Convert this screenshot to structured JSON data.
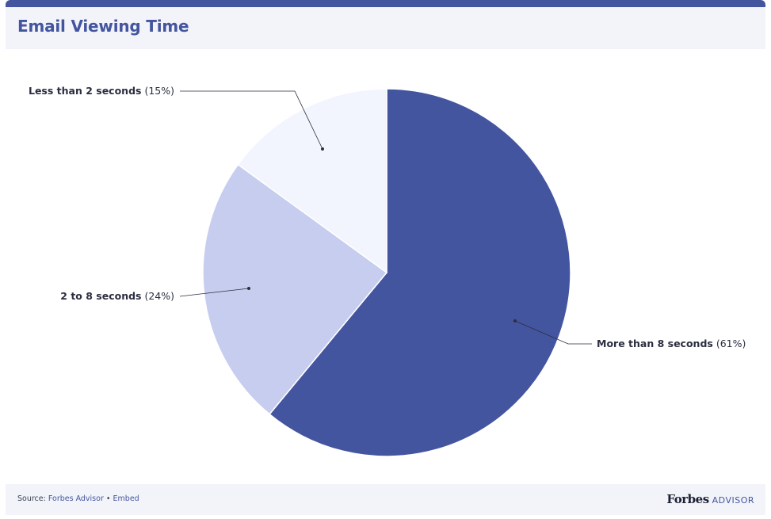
{
  "header": {
    "title": "Email Viewing Time"
  },
  "chart_data": {
    "type": "pie",
    "title": "Email Viewing Time",
    "slices": [
      {
        "label": "More than 8 seconds",
        "value": 61,
        "display": "(61%)",
        "color": "#44559f"
      },
      {
        "label": "2 to 8 seconds",
        "value": 24,
        "display": "(24%)",
        "color": "#c7cdef"
      },
      {
        "label": "Less than 2 seconds",
        "value": 15,
        "display": "(15%)",
        "color": "#f2f5fd"
      }
    ]
  },
  "footer": {
    "source_prefix": "Source:",
    "source_name": "Forbes Advisor",
    "separator": "•",
    "embed": "Embed",
    "brand_name": "Forbes",
    "brand_suffix": "ADVISOR"
  }
}
